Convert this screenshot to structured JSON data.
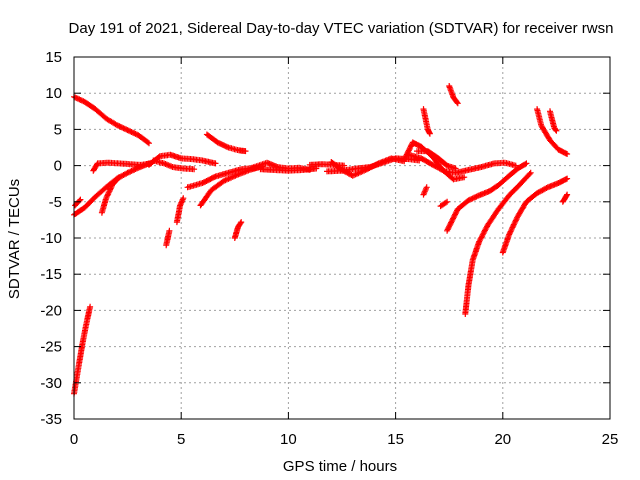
{
  "chart_data": {
    "type": "scatter",
    "title": "Day 191 of 2021, Sidereal Day-to-day VTEC variation (SDTVAR) for receiver rwsn",
    "xlabel": "GPS time / hours",
    "ylabel": "SDTVAR / TECUs",
    "xlim": [
      0,
      25
    ],
    "ylim": [
      -35,
      15
    ],
    "xticks": [
      "0",
      "5",
      "10",
      "15",
      "20",
      "25"
    ],
    "yticks": [
      "15",
      "10",
      "5",
      "0",
      "-5",
      "-10",
      "-15",
      "-20",
      "-25",
      "-30",
      "-35"
    ],
    "grid": true,
    "legend": "none",
    "marker": "+",
    "color": "#ff0000",
    "tracks": [
      {
        "name": "track-a",
        "points": [
          [
            0.0,
            9.5
          ],
          [
            0.5,
            8.8
          ],
          [
            1.0,
            7.8
          ],
          [
            1.5,
            6.5
          ],
          [
            2.0,
            5.6
          ],
          [
            2.5,
            4.9
          ],
          [
            3.0,
            4.2
          ],
          [
            3.5,
            3.1
          ]
        ]
      },
      {
        "name": "track-b",
        "points": [
          [
            0.0,
            -6.8
          ],
          [
            0.5,
            -5.8
          ],
          [
            1.0,
            -4.3
          ],
          [
            1.5,
            -3.0
          ],
          [
            2.0,
            -1.8
          ],
          [
            2.5,
            -1.0
          ],
          [
            3.0,
            -0.3
          ],
          [
            3.5,
            0.3
          ]
        ]
      },
      {
        "name": "track-c",
        "points": [
          [
            0.05,
            -5.5
          ],
          [
            0.3,
            -4.7
          ]
        ]
      },
      {
        "name": "track-d",
        "points": [
          [
            0.0,
            -31.5
          ],
          [
            0.2,
            -28.0
          ],
          [
            0.4,
            -24.5
          ],
          [
            0.6,
            -21.5
          ],
          [
            0.75,
            -19.5
          ]
        ]
      },
      {
        "name": "track-e",
        "points": [
          [
            0.9,
            -0.7
          ],
          [
            1.1,
            0.3
          ],
          [
            1.6,
            0.4
          ],
          [
            2.1,
            0.3
          ],
          [
            2.6,
            0.2
          ],
          [
            3.1,
            0.1
          ],
          [
            3.6,
            0.3
          ]
        ]
      },
      {
        "name": "track-f",
        "points": [
          [
            1.3,
            -6.5
          ],
          [
            1.5,
            -4.5
          ],
          [
            1.8,
            -2.6
          ],
          [
            2.1,
            -1.6
          ]
        ]
      },
      {
        "name": "track-g",
        "points": [
          [
            3.5,
            0.1
          ],
          [
            4.0,
            1.3
          ],
          [
            4.5,
            1.5
          ],
          [
            5.0,
            1.0
          ],
          [
            5.5,
            0.9
          ],
          [
            6.0,
            0.7
          ],
          [
            6.6,
            0.3
          ]
        ]
      },
      {
        "name": "track-h",
        "points": [
          [
            3.7,
            0.7
          ],
          [
            4.2,
            0.3
          ],
          [
            4.6,
            -0.2
          ],
          [
            5.1,
            -0.4
          ],
          [
            5.6,
            -0.5
          ]
        ]
      },
      {
        "name": "track-i",
        "points": [
          [
            4.3,
            -11.0
          ],
          [
            4.45,
            -9.0
          ]
        ]
      },
      {
        "name": "track-j",
        "points": [
          [
            4.8,
            -7.8
          ],
          [
            4.95,
            -5.5
          ],
          [
            5.1,
            -4.5
          ]
        ]
      },
      {
        "name": "track-k",
        "points": [
          [
            5.3,
            -3.0
          ],
          [
            6.0,
            -2.4
          ],
          [
            6.6,
            -1.5
          ],
          [
            7.2,
            -1.0
          ],
          [
            7.8,
            -0.5
          ],
          [
            8.5,
            -0.3
          ]
        ]
      },
      {
        "name": "track-l",
        "points": [
          [
            5.9,
            -5.5
          ],
          [
            6.4,
            -3.4
          ],
          [
            7.0,
            -2.1
          ],
          [
            7.6,
            -1.3
          ],
          [
            8.2,
            -0.6
          ],
          [
            8.8,
            -0.1
          ]
        ]
      },
      {
        "name": "track-m",
        "points": [
          [
            6.2,
            4.3
          ],
          [
            6.7,
            3.2
          ],
          [
            7.2,
            2.5
          ],
          [
            7.7,
            2.1
          ],
          [
            8.0,
            2.0
          ]
        ]
      },
      {
        "name": "track-n",
        "points": [
          [
            7.5,
            -10.0
          ],
          [
            7.65,
            -8.5
          ],
          [
            7.8,
            -7.8
          ]
        ]
      },
      {
        "name": "track-o",
        "points": [
          [
            8.3,
            -0.3
          ],
          [
            9.0,
            0.4
          ],
          [
            9.5,
            -0.2
          ],
          [
            10.0,
            -0.4
          ],
          [
            10.5,
            -0.3
          ],
          [
            11.0,
            -0.6
          ]
        ]
      },
      {
        "name": "track-p",
        "points": [
          [
            8.7,
            -0.5
          ],
          [
            9.3,
            -0.6
          ],
          [
            10.0,
            -0.7
          ],
          [
            10.7,
            -0.6
          ],
          [
            11.3,
            -0.4
          ]
        ]
      },
      {
        "name": "track-q",
        "points": [
          [
            11.0,
            0.1
          ],
          [
            11.6,
            0.2
          ],
          [
            12.1,
            0.1
          ],
          [
            12.6,
            0.0
          ]
        ]
      },
      {
        "name": "track-r",
        "points": [
          [
            12.0,
            0.5
          ],
          [
            12.5,
            -0.6
          ],
          [
            13.0,
            -1.4
          ],
          [
            13.6,
            -0.6
          ],
          [
            14.2,
            0.3
          ],
          [
            14.8,
            1.0
          ],
          [
            15.4,
            0.6
          ]
        ]
      },
      {
        "name": "track-s",
        "points": [
          [
            11.8,
            -0.8
          ],
          [
            12.5,
            -0.7
          ],
          [
            13.2,
            -0.4
          ],
          [
            13.8,
            -0.2
          ],
          [
            14.4,
            0.4
          ],
          [
            15.0,
            1.0
          ],
          [
            15.6,
            0.9
          ],
          [
            16.1,
            0.7
          ]
        ]
      },
      {
        "name": "track-t",
        "points": [
          [
            15.4,
            0.8
          ],
          [
            15.8,
            3.2
          ],
          [
            16.2,
            2.6
          ],
          [
            16.7,
            1.3
          ],
          [
            17.2,
            -0.6
          ],
          [
            17.7,
            -1.9
          ],
          [
            18.2,
            -1.6
          ]
        ]
      },
      {
        "name": "track-u",
        "points": [
          [
            15.6,
            1.5
          ],
          [
            16.2,
            1.0
          ],
          [
            16.8,
            0.0
          ],
          [
            17.3,
            -0.8
          ],
          [
            17.8,
            -1.0
          ],
          [
            18.4,
            -0.6
          ],
          [
            19.0,
            -0.2
          ],
          [
            19.6,
            0.3
          ],
          [
            20.1,
            0.4
          ],
          [
            20.6,
            0.0
          ]
        ]
      },
      {
        "name": "track-v",
        "points": [
          [
            16.0,
            2.0
          ],
          [
            16.5,
            2.0
          ],
          [
            17.0,
            1.0
          ],
          [
            17.4,
            0.0
          ],
          [
            17.8,
            -0.4
          ]
        ]
      },
      {
        "name": "track-w",
        "points": [
          [
            16.3,
            7.8
          ],
          [
            16.5,
            5.0
          ],
          [
            16.6,
            4.4
          ]
        ]
      },
      {
        "name": "track-x",
        "points": [
          [
            16.3,
            -4.0
          ],
          [
            16.45,
            -3.0
          ]
        ]
      },
      {
        "name": "track-y",
        "points": [
          [
            17.1,
            -5.6
          ],
          [
            17.4,
            -5.0
          ]
        ]
      },
      {
        "name": "track-z",
        "points": [
          [
            17.5,
            11.0
          ],
          [
            17.7,
            9.4
          ],
          [
            17.9,
            8.6
          ]
        ]
      },
      {
        "name": "track-aa",
        "points": [
          [
            17.4,
            -9.0
          ],
          [
            17.9,
            -6.0
          ],
          [
            18.4,
            -4.8
          ],
          [
            18.9,
            -4.1
          ],
          [
            19.4,
            -3.5
          ],
          [
            19.8,
            -2.7
          ],
          [
            20.3,
            -1.4
          ],
          [
            20.7,
            -0.4
          ],
          [
            21.1,
            0.3
          ]
        ]
      },
      {
        "name": "track-ab",
        "points": [
          [
            18.25,
            -20.5
          ],
          [
            18.4,
            -16.5
          ],
          [
            18.6,
            -13.0
          ],
          [
            18.9,
            -10.5
          ],
          [
            19.3,
            -8.2
          ],
          [
            19.8,
            -6.0
          ],
          [
            20.3,
            -4.1
          ],
          [
            20.8,
            -2.6
          ],
          [
            21.3,
            -1.0
          ]
        ]
      },
      {
        "name": "track-ac",
        "points": [
          [
            20.0,
            -12.0
          ],
          [
            20.3,
            -9.5
          ],
          [
            20.7,
            -7.0
          ],
          [
            21.1,
            -5.0
          ],
          [
            21.6,
            -3.8
          ],
          [
            22.1,
            -3.0
          ],
          [
            22.6,
            -2.4
          ],
          [
            23.0,
            -1.8
          ]
        ]
      },
      {
        "name": "track-ad",
        "points": [
          [
            21.6,
            7.8
          ],
          [
            21.8,
            5.5
          ],
          [
            22.2,
            3.5
          ],
          [
            22.6,
            2.2
          ],
          [
            23.0,
            1.6
          ]
        ]
      },
      {
        "name": "track-ae",
        "points": [
          [
            22.2,
            7.5
          ],
          [
            22.4,
            5.2
          ],
          [
            22.5,
            4.8
          ]
        ]
      },
      {
        "name": "track-af",
        "points": [
          [
            22.8,
            -5.0
          ],
          [
            23.0,
            -4.0
          ]
        ]
      }
    ]
  }
}
